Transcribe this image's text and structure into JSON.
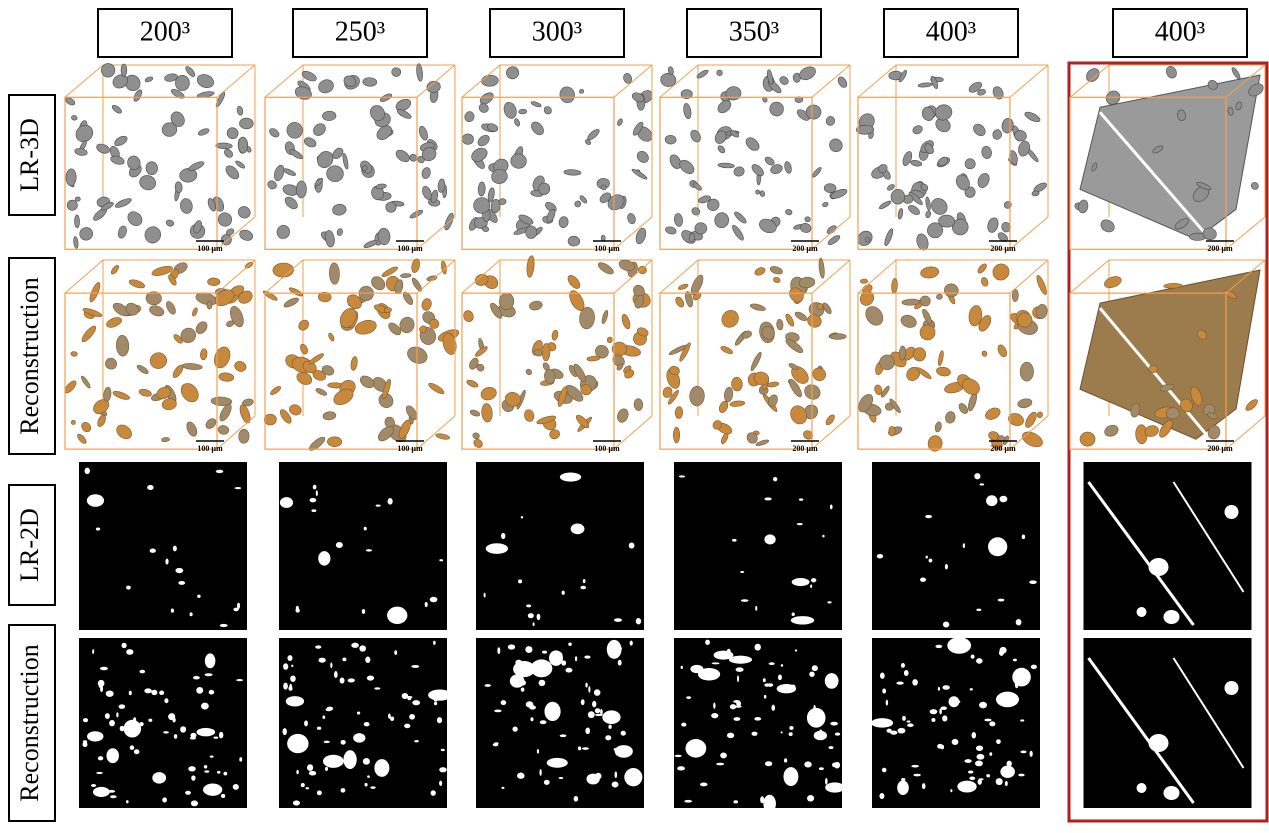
{
  "columns": [
    "200³",
    "250³",
    "300³",
    "350³",
    "400³",
    "400³"
  ],
  "rows": [
    "LR-3D",
    "Reconstruction",
    "LR-2D",
    "Reconstruction"
  ],
  "scale_bars": {
    "lr_3d": [
      "100 µm",
      "100 µm",
      "100 µm",
      "200 µm",
      "200 µm",
      "200 µm"
    ],
    "reconstruction_3d": [
      "100 µm",
      "100 µm",
      "100 µm",
      "200 µm",
      "200 µm",
      "200 µm"
    ]
  }
}
